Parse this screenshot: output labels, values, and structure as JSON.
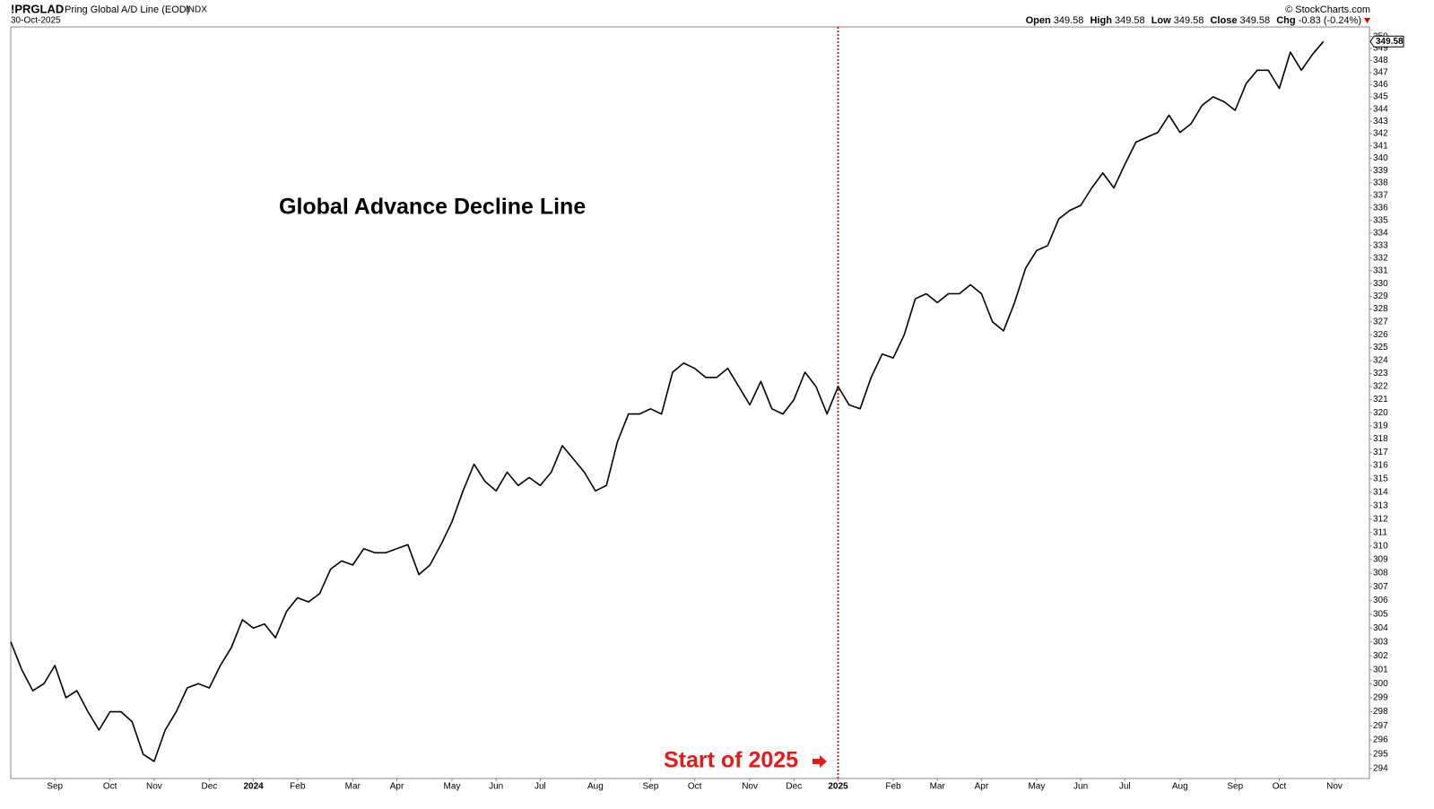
{
  "chart_data": {
    "type": "line",
    "header": {
      "symbol": "!PRGLAD",
      "name": "Pring Global A/D Line (EOD)",
      "exchange": "INDX",
      "date": "30-Oct-2025",
      "credit": "© StockCharts.com",
      "open_label": "Open",
      "open": "349.58",
      "high_label": "High",
      "high": "349.58",
      "low_label": "Low",
      "low": "349.58",
      "close_label": "Close",
      "close": "349.58",
      "chg_label": "Chg",
      "chg": "-0.83 (-0.24%)"
    },
    "title": "Global Advance Decline Line",
    "annotation": "Start of 2025",
    "yscale": "log",
    "ylim": [
      293.3,
      350.8
    ],
    "yticks": [
      294,
      295,
      296,
      297,
      298,
      299,
      300,
      301,
      302,
      303,
      304,
      305,
      306,
      307,
      308,
      309,
      310,
      311,
      312,
      313,
      314,
      315,
      316,
      317,
      318,
      319,
      320,
      321,
      322,
      323,
      324,
      325,
      326,
      327,
      328,
      329,
      330,
      331,
      332,
      333,
      334,
      335,
      336,
      337,
      338,
      339,
      340,
      341,
      342,
      343,
      344,
      345,
      346,
      347,
      348,
      349,
      350
    ],
    "categories": [
      null,
      null,
      null,
      null,
      "Sep",
      null,
      null,
      null,
      null,
      "Oct",
      null,
      null,
      null,
      "Nov",
      null,
      null,
      null,
      null,
      "Dec",
      null,
      null,
      null,
      "2024",
      null,
      null,
      null,
      "Feb",
      null,
      null,
      null,
      null,
      "Mar",
      null,
      null,
      null,
      "Apr",
      null,
      null,
      null,
      null,
      "May",
      null,
      null,
      null,
      "Jun",
      null,
      null,
      null,
      "Jul",
      null,
      null,
      null,
      null,
      "Aug",
      null,
      null,
      null,
      null,
      "Sep",
      null,
      null,
      null,
      "Oct",
      null,
      null,
      null,
      null,
      "Nov",
      null,
      null,
      null,
      "Dec",
      null,
      null,
      null,
      "2025",
      null,
      null,
      null,
      null,
      "Feb",
      null,
      null,
      null,
      "Mar",
      null,
      null,
      null,
      "Apr",
      null,
      null,
      null,
      null,
      "May",
      null,
      null,
      null,
      "Jun",
      null,
      null,
      null,
      "Jul",
      null,
      null,
      null,
      null,
      "Aug",
      null,
      null,
      null,
      null,
      "Sep",
      null,
      null,
      null,
      "Oct",
      null,
      null,
      null,
      null,
      "Nov"
    ],
    "series": [
      {
        "name": "!PRGLAD",
        "color": "#000000",
        "values": [
          303,
          301,
          299.5,
          300,
          301.3,
          299,
          299.5,
          298,
          296.7,
          298,
          298,
          297.3,
          295,
          294.5,
          296.7,
          298,
          299.7,
          300,
          299.7,
          301.3,
          302.6,
          304.6,
          304,
          304.3,
          303.3,
          305.2,
          306.2,
          305.9,
          306.5,
          308.3,
          308.9,
          308.6,
          309.8,
          309.5,
          309.5,
          309.8,
          310.1,
          307.9,
          308.6,
          310.1,
          311.8,
          314.1,
          316.1,
          314.8,
          314.1,
          315.5,
          314.5,
          315.1,
          314.5,
          315.5,
          317.5,
          316.5,
          315.5,
          314.1,
          314.5,
          317.8,
          319.9,
          319.9,
          320.3,
          319.9,
          323.1,
          323.8,
          323.4,
          322.7,
          322.7,
          323.4,
          322,
          320.6,
          322.4,
          320.3,
          319.9,
          321,
          323.1,
          322,
          319.9,
          322,
          320.6,
          320.3,
          322.7,
          324.5,
          324.2,
          326,
          328.8,
          329.2,
          328.5,
          329.2,
          329.2,
          329.9,
          329.2,
          327,
          326.3,
          328.5,
          331.2,
          332.6,
          333,
          335.1,
          335.8,
          336.2,
          337.6,
          338.8,
          337.6,
          339.5,
          341.3,
          341.7,
          342.1,
          343.5,
          342.1,
          342.8,
          344.3,
          345,
          344.6,
          343.9,
          346.1,
          347.2,
          347.2,
          345.7,
          348.7,
          347.2,
          348.5,
          349.58,
          null
        ]
      }
    ]
  }
}
